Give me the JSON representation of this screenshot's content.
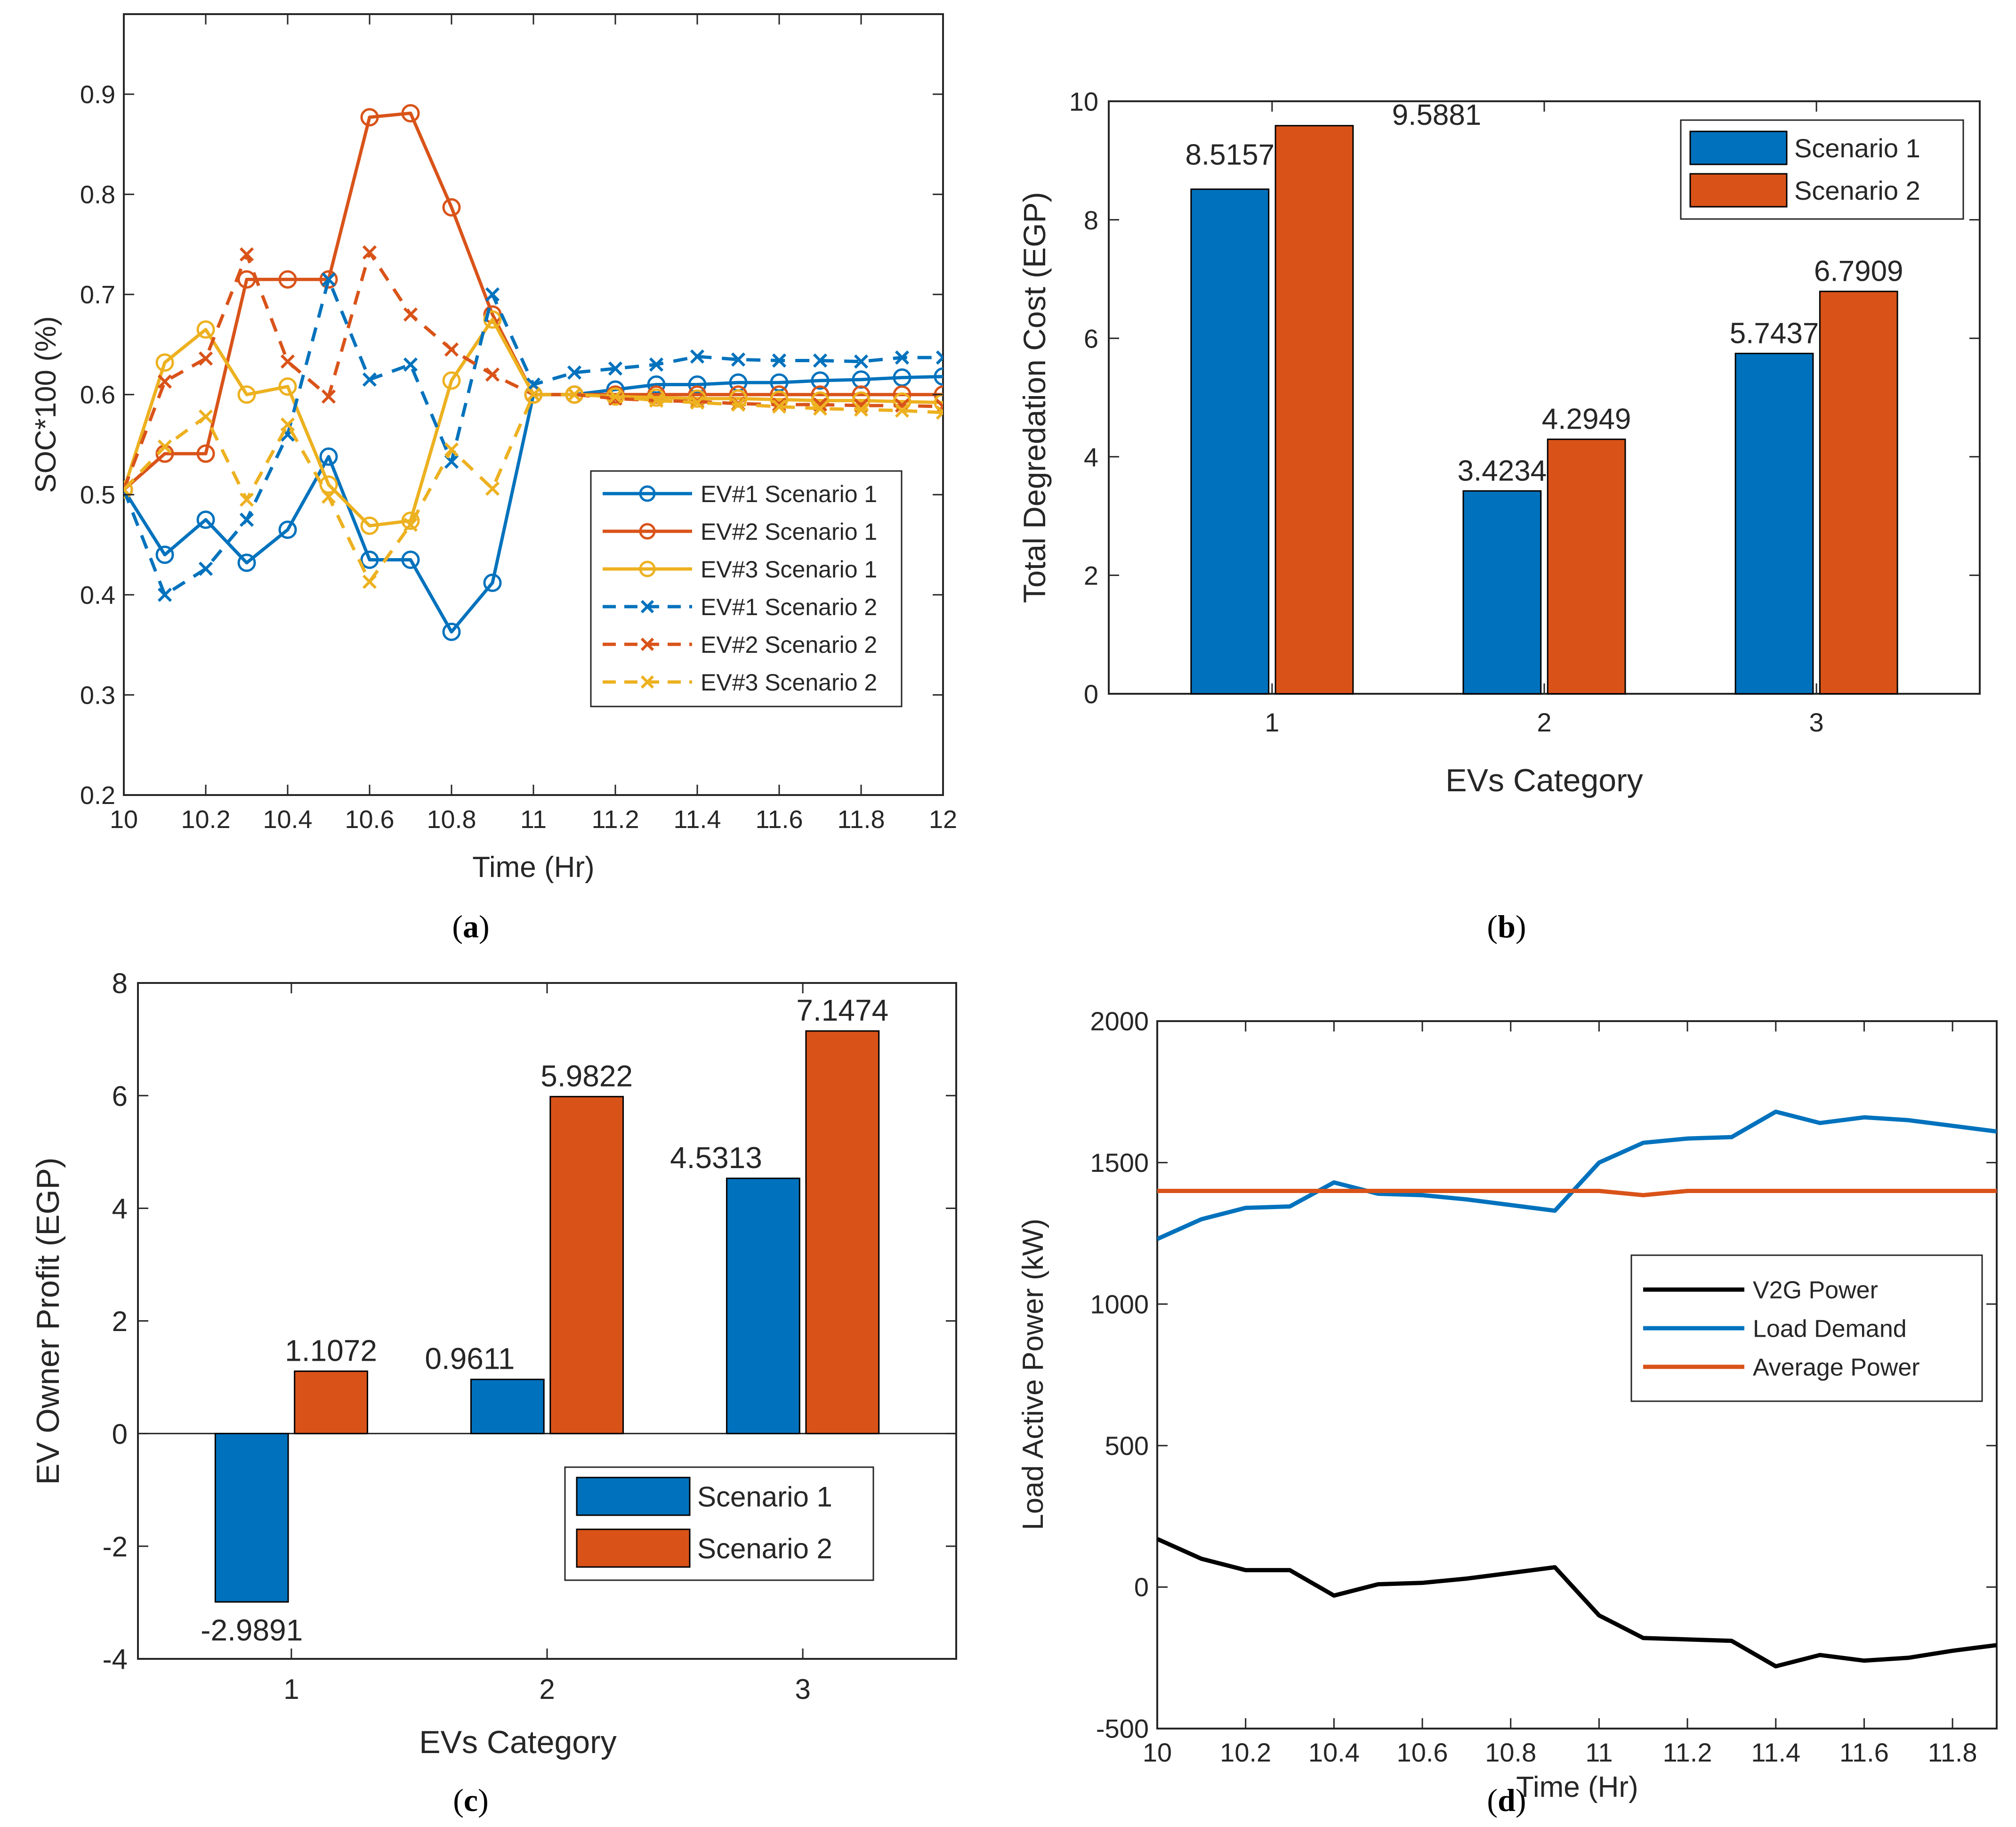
{
  "colors": {
    "blue": "#0072BD",
    "orange": "#D95319",
    "yellow": "#EDB120",
    "black": "#000000",
    "axis": "#262626"
  },
  "chart_data": [
    {
      "id": "a",
      "caption_letter": "a",
      "type": "line",
      "xlabel": "Time (Hr)",
      "ylabel": "SOC*100 (%)",
      "xlim": [
        10,
        12
      ],
      "ylim": [
        0.2,
        0.98
      ],
      "xticks": [
        10,
        10.2,
        10.4,
        10.6,
        10.8,
        11,
        11.2,
        11.4,
        11.6,
        11.8,
        12
      ],
      "yticks": [
        0.2,
        0.3,
        0.4,
        0.5,
        0.6,
        0.7,
        0.8,
        0.9
      ],
      "x": [
        10,
        10.1,
        10.2,
        10.3,
        10.4,
        10.5,
        10.6,
        10.7,
        10.8,
        10.9,
        11,
        11.1,
        11.2,
        11.3,
        11.4,
        11.5,
        11.6,
        11.7,
        11.8,
        11.9,
        12
      ],
      "series": [
        {
          "name": "EV#1 Scenario 1",
          "color": "#0072BD",
          "style": "solid",
          "marker": "o",
          "values": [
            0.505,
            0.44,
            0.475,
            0.432,
            0.465,
            0.538,
            0.435,
            0.435,
            0.363,
            0.412,
            0.6,
            0.6,
            0.605,
            0.61,
            0.61,
            0.612,
            0.612,
            0.614,
            0.615,
            0.617,
            0.618
          ]
        },
        {
          "name": "EV#2 Scenario 1",
          "color": "#D95319",
          "style": "solid",
          "marker": "o",
          "values": [
            0.505,
            0.541,
            0.541,
            0.715,
            0.715,
            0.715,
            0.877,
            0.881,
            0.787,
            0.68,
            0.6,
            0.6,
            0.6,
            0.6,
            0.6,
            0.6,
            0.6,
            0.6,
            0.6,
            0.6,
            0.6
          ]
        },
        {
          "name": "EV#3 Scenario 1",
          "color": "#EDB120",
          "style": "solid",
          "marker": "o",
          "values": [
            0.505,
            0.632,
            0.665,
            0.6,
            0.608,
            0.51,
            0.469,
            0.474,
            0.614,
            0.675,
            0.6,
            0.6,
            0.598,
            0.597,
            0.596,
            0.596,
            0.595,
            0.594,
            0.594,
            0.593,
            0.592
          ]
        },
        {
          "name": "EV#1 Scenario 2",
          "color": "#0072BD",
          "style": "dashed",
          "marker": "x",
          "values": [
            0.505,
            0.4,
            0.426,
            0.475,
            0.56,
            0.715,
            0.615,
            0.63,
            0.533,
            0.7,
            0.61,
            0.622,
            0.626,
            0.63,
            0.638,
            0.635,
            0.634,
            0.634,
            0.633,
            0.637,
            0.637
          ]
        },
        {
          "name": "EV#2 Scenario 2",
          "color": "#D95319",
          "style": "dashed",
          "marker": "x",
          "values": [
            0.505,
            0.613,
            0.636,
            0.74,
            0.633,
            0.598,
            0.742,
            0.68,
            0.645,
            0.62,
            0.6,
            0.6,
            0.596,
            0.594,
            0.593,
            0.591,
            0.59,
            0.59,
            0.589,
            0.589,
            0.588
          ]
        },
        {
          "name": "EV#3 Scenario 2",
          "color": "#EDB120",
          "style": "dashed",
          "marker": "x",
          "values": [
            0.505,
            0.548,
            0.578,
            0.495,
            0.57,
            0.498,
            0.413,
            0.47,
            0.545,
            0.506,
            0.6,
            0.6,
            0.598,
            0.594,
            0.592,
            0.59,
            0.588,
            0.586,
            0.585,
            0.584,
            0.582
          ]
        }
      ],
      "legend": "bottom-right"
    },
    {
      "id": "b",
      "caption_letter": "b",
      "type": "bar",
      "xlabel": "EVs Category",
      "ylabel": "Total Degredation Cost (EGP)",
      "ylim": [
        0,
        10
      ],
      "yticks": [
        0,
        2,
        4,
        6,
        8,
        10
      ],
      "categories": [
        "1",
        "2",
        "3"
      ],
      "series": [
        {
          "name": "Scenario 1",
          "color": "#0072BD",
          "values": [
            8.5157,
            3.4234,
            5.7437
          ],
          "labels": [
            "8.5157",
            "3.4234",
            "5.7437"
          ]
        },
        {
          "name": "Scenario 2",
          "color": "#D95319",
          "values": [
            9.5881,
            4.2949,
            6.7909
          ],
          "labels": [
            "9.5881",
            "4.2949",
            "6.7909"
          ]
        }
      ],
      "legend": "top-right"
    },
    {
      "id": "c",
      "caption_letter": "c",
      "type": "bar",
      "xlabel": "EVs Category",
      "ylabel": "EV Owner Profit (EGP)",
      "ylim": [
        -4,
        8
      ],
      "yticks": [
        -4,
        -2,
        0,
        2,
        4,
        6,
        8
      ],
      "categories": [
        "1",
        "2",
        "3"
      ],
      "series": [
        {
          "name": "Scenario 1",
          "color": "#0072BD",
          "values": [
            -2.9891,
            0.9611,
            4.5313
          ],
          "labels": [
            "-2.9891",
            "0.9611",
            "4.5313"
          ]
        },
        {
          "name": "Scenario 2",
          "color": "#D95319",
          "values": [
            1.1072,
            5.9822,
            7.1474
          ],
          "labels": [
            "1.1072",
            "5.9822",
            "7.1474"
          ]
        }
      ],
      "legend": "bottom-right"
    },
    {
      "id": "d",
      "caption_letter": "d",
      "type": "line",
      "xlabel": "Time (Hr)",
      "ylabel": "Load Active Power (kW)",
      "xlim": [
        10,
        11.9
      ],
      "ylim": [
        -500,
        2000
      ],
      "xticks": [
        10,
        10.2,
        10.4,
        10.6,
        10.8,
        11,
        11.2,
        11.4,
        11.6,
        11.8
      ],
      "yticks": [
        -500,
        0,
        500,
        1000,
        1500,
        2000
      ],
      "x": [
        10,
        10.1,
        10.2,
        10.3,
        10.4,
        10.5,
        10.6,
        10.7,
        10.8,
        10.9,
        11,
        11.1,
        11.2,
        11.3,
        11.4,
        11.5,
        11.6,
        11.7,
        11.8,
        11.9
      ],
      "series": [
        {
          "name": "V2G Power",
          "color": "#000000",
          "values": [
            170,
            100,
            60,
            60,
            -30,
            10,
            15,
            30,
            50,
            70,
            -100,
            -180,
            -185,
            -190,
            -280,
            -240,
            -260,
            -250,
            -225,
            -205
          ]
        },
        {
          "name": "Load Demand",
          "color": "#0072BD",
          "values": [
            1230,
            1300,
            1340,
            1345,
            1430,
            1390,
            1385,
            1370,
            1350,
            1330,
            1500,
            1570,
            1585,
            1590,
            1680,
            1640,
            1660,
            1650,
            1630,
            1610
          ]
        },
        {
          "name": "Average Power",
          "color": "#D95319",
          "values": [
            1400,
            1400,
            1400,
            1400,
            1400,
            1400,
            1400,
            1400,
            1400,
            1400,
            1400,
            1385,
            1400,
            1400,
            1400,
            1400,
            1400,
            1400,
            1400,
            1400
          ]
        }
      ],
      "legend": "middle-right"
    }
  ]
}
